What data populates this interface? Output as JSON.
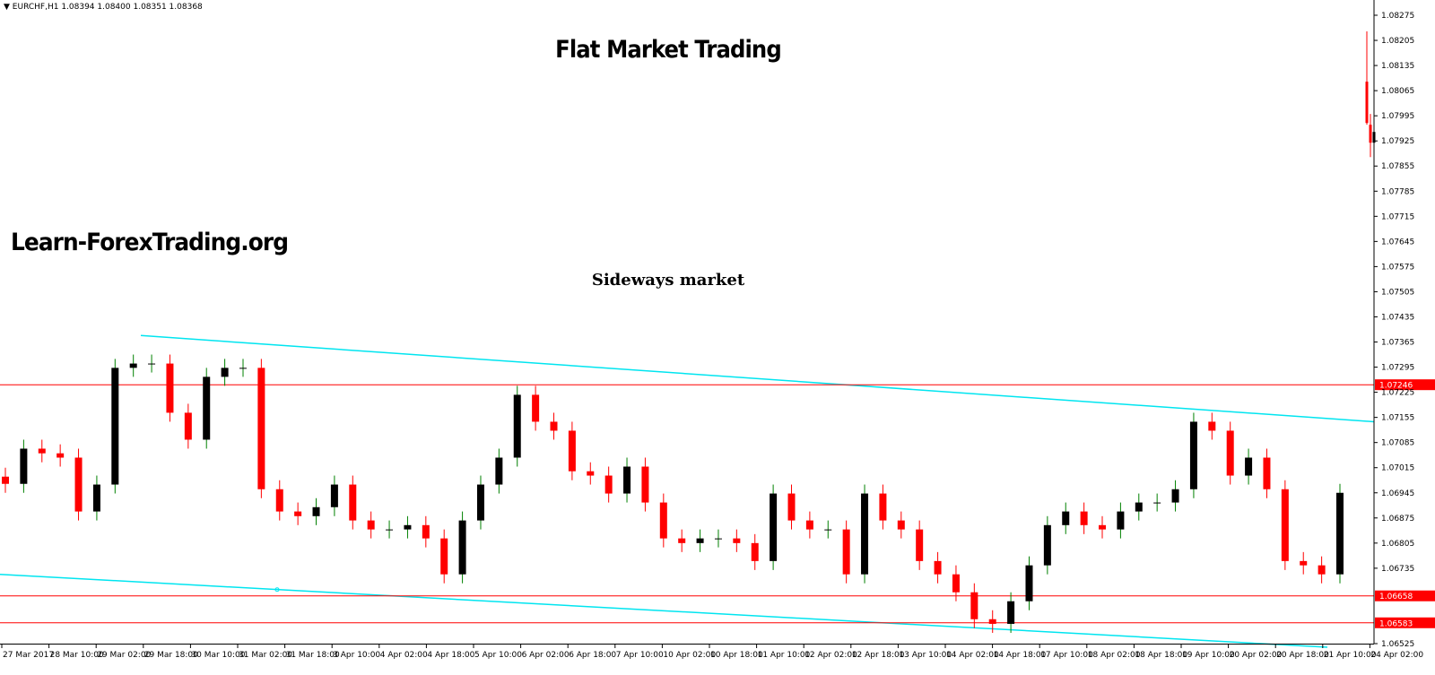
{
  "header": {
    "symbol_icon": "triangle-down-icon",
    "text": "EURCHF,H1  1.08394 1.08400 1.08351 1.08368"
  },
  "annotations": {
    "title": "Flat Market Trading",
    "website": "Learn-ForexTrading.org",
    "subtitle": "Sideways market"
  },
  "colors": {
    "bull": "#000000",
    "bear": "#ff0000",
    "bull_wick": "#008000",
    "level": "#ff0000",
    "trend": "#00e5f0"
  },
  "chart_data": {
    "type": "candlestick",
    "symbol": "EURCHF",
    "timeframe": "H1",
    "ylim": [
      1.06525,
      1.083
    ],
    "y_ticks": [
      "1.08275",
      "1.08205",
      "1.08135",
      "1.08065",
      "1.07995",
      "1.07925",
      "1.07855",
      "1.07785",
      "1.07715",
      "1.07645",
      "1.07575",
      "1.07505",
      "1.07435",
      "1.07365",
      "1.07295",
      "1.07225",
      "1.07155",
      "1.07085",
      "1.07015",
      "1.06945",
      "1.06875",
      "1.06805",
      "1.06735",
      "1.06525"
    ],
    "x_ticks": [
      "27 Mar 2017",
      "28 Mar 10:00",
      "29 Mar 02:00",
      "29 Mar 18:00",
      "30 Mar 10:00",
      "31 Mar 02:00",
      "31 Mar 18:00",
      "3 Apr 10:00",
      "4 Apr 02:00",
      "4 Apr 18:00",
      "5 Apr 10:00",
      "6 Apr 02:00",
      "6 Apr 18:00",
      "7 Apr 10:00",
      "10 Apr 02:00",
      "10 Apr 18:00",
      "11 Apr 10:00",
      "12 Apr 02:00",
      "12 Apr 18:00",
      "13 Apr 10:00",
      "14 Apr 02:00",
      "14 Apr 18:00",
      "17 Apr 10:00",
      "18 Apr 02:00",
      "18 Apr 18:00",
      "19 Apr 10:00",
      "20 Apr 02:00",
      "20 Apr 18:00",
      "21 Apr 10:00",
      "24 Apr 02:00"
    ],
    "closes": [
      1.0697,
      1.07068,
      1.07055,
      1.07043,
      1.06893,
      1.06968,
      1.07293,
      1.07305,
      1.07305,
      1.07168,
      1.07093,
      1.07268,
      1.07293,
      1.07293,
      1.06955,
      1.06893,
      1.0688,
      1.06905,
      1.06968,
      1.06868,
      1.06843,
      1.06843,
      1.06855,
      1.06818,
      1.06718,
      1.06868,
      1.06968,
      1.07043,
      1.07218,
      1.07143,
      1.07118,
      1.07005,
      1.06993,
      1.06943,
      1.07018,
      1.06918,
      1.06818,
      1.06805,
      1.06818,
      1.06818,
      1.06805,
      1.06755,
      1.06943,
      1.06868,
      1.06843,
      1.06843,
      1.06718,
      1.06943,
      1.06868,
      1.06843,
      1.06755,
      1.06718,
      1.06668,
      1.06593,
      1.0658,
      1.06643,
      1.06743,
      1.06855,
      1.06893,
      1.06855,
      1.06843,
      1.06893,
      1.06918,
      1.06918,
      1.06955,
      1.07143,
      1.07118,
      1.06993,
      1.07043,
      1.06955,
      1.06755,
      1.06743,
      1.06718,
      1.06945
    ],
    "spike_candles": [
      {
        "open": 1.0809,
        "high": 1.0823,
        "low": 1.0797,
        "close": 1.07975
      },
      {
        "open": 1.0797,
        "high": 1.08,
        "low": 1.0788,
        "close": 1.0792
      },
      {
        "open": 1.0792,
        "high": 1.0796,
        "low": 1.07895,
        "close": 1.0795
      }
    ],
    "horizontal_levels": [
      {
        "price": 1.07246,
        "label": "1.07246"
      },
      {
        "price": 1.06658,
        "label": "1.06658"
      },
      {
        "price": 1.06583,
        "label": "1.06583"
      }
    ],
    "trendlines": [
      {
        "start_price": 1.07383,
        "end_price": 1.07143
      },
      {
        "start_price": 1.06718,
        "end_price": 1.06515
      }
    ]
  }
}
